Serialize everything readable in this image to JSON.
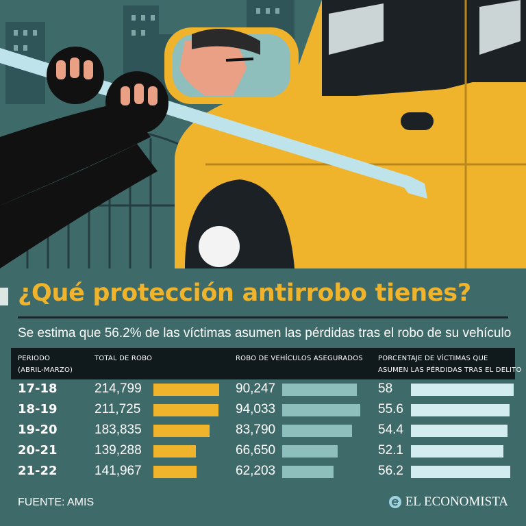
{
  "title": "¿Qué protección antirrobo tienes?",
  "subtitle": "Se estima que 56.2% de las víctimas asumen las pérdidas tras el robo de su vehículo",
  "headers": {
    "period": [
      "PERIODO",
      "(ABRIL-MARZO)"
    ],
    "total": [
      "TOTAL DE ROBO"
    ],
    "insured": [
      "ROBO DE VEHÍCULOS ASEGURADOS"
    ],
    "pct": [
      "PORCENTAJE DE VÍCTIMAS QUE",
      "ASUMEN LAS PÉRDIDAS TRAS EL DELITO"
    ]
  },
  "source": "FUENTE: AMIS",
  "brand": "EL ECONOMISTA",
  "colors": {
    "background": "#3f6a6a",
    "title": "#efb32c",
    "total_bar": "#efb32c",
    "insured_bar": "#8fbfbd",
    "pct_bar": "#d3ecf0",
    "header_bg": "#101a1d"
  },
  "chart_data": {
    "type": "table",
    "categories": [
      "17-18",
      "18-19",
      "19-20",
      "20-21",
      "21-22"
    ],
    "series": [
      {
        "name": "TOTAL DE ROBO",
        "values": [
          214799,
          211725,
          183835,
          139288,
          141967
        ],
        "labels": [
          "214,799",
          "211,725",
          "183,835",
          "139,288",
          "141,967"
        ]
      },
      {
        "name": "ROBO DE VEHÍCULOS ASEGURADOS",
        "values": [
          90247,
          94033,
          83790,
          66650,
          62203
        ],
        "labels": [
          "90,247",
          "94,033",
          "83,790",
          "66,650",
          "62,203"
        ]
      },
      {
        "name": "PORCENTAJE DE VÍCTIMAS QUE ASUMEN LAS PÉRDIDAS TRAS EL DELITO",
        "values": [
          58,
          55.6,
          54.4,
          52.1,
          56.2
        ],
        "labels": [
          "58",
          "55.6",
          "54.4",
          "52.1",
          "56.2"
        ]
      }
    ]
  }
}
